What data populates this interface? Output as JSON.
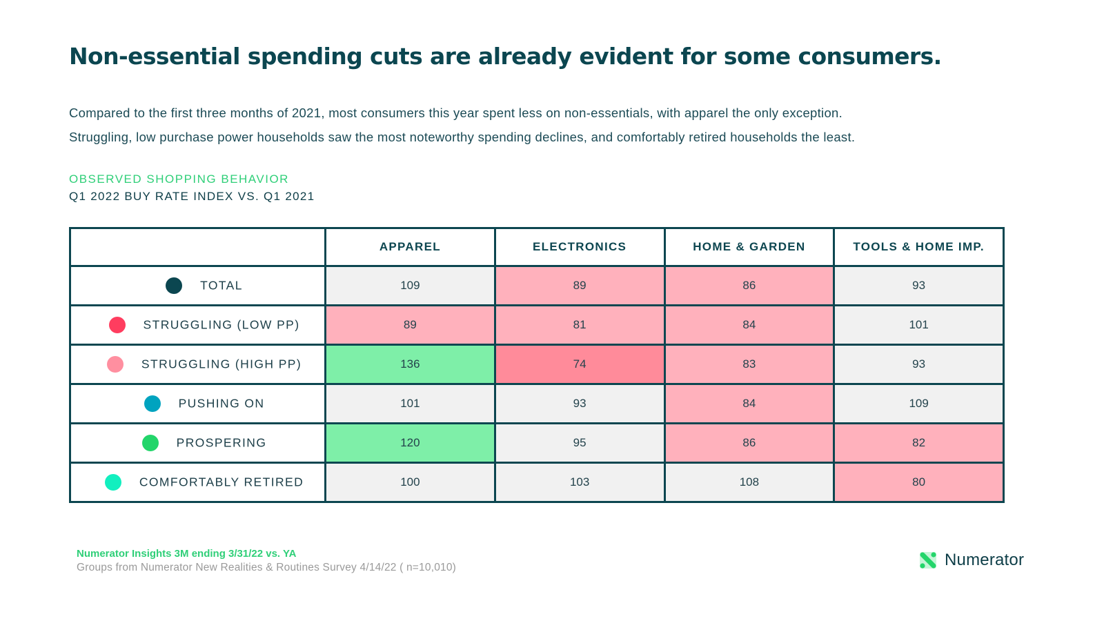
{
  "header": {
    "title": "Non-essential spending cuts are already evident for some consumers.",
    "subtitle_lines": [
      "Compared to the first three months of 2021, most consumers this year spent less on non-essentials, with apparel the only exception.",
      "Struggling, low purchase power households saw the most noteworthy spending declines, and comfortably retired households the least."
    ]
  },
  "section": {
    "label": "OBSERVED SHOPPING BEHAVIOR",
    "sublabel": "Q1 2022 BUY RATE INDEX VS. Q1 2021"
  },
  "colors": {
    "neutral": "#f1f1f1",
    "below_index": "#ffb1bc",
    "well_below_index": "#ff8b9a",
    "above_index": "#7eefa8",
    "border": "#0c4650"
  },
  "table": {
    "columns": [
      "",
      "APPAREL",
      "ELECTRONICS",
      "HOME & GARDEN",
      "TOOLS & HOME IMP."
    ],
    "rows": [
      {
        "label": "TOTAL",
        "dot_color": "#0b4650",
        "values": [
          "109",
          "89",
          "86",
          "93"
        ],
        "styles": [
          "neutral",
          "neg",
          "neg",
          "neutral"
        ]
      },
      {
        "label": "STRUGGLING (LOW PP)",
        "dot_color": "#ff3d5f",
        "values": [
          "89",
          "81",
          "84",
          "101"
        ],
        "styles": [
          "neg",
          "neg",
          "neg",
          "neutral"
        ]
      },
      {
        "label": "STRUGGLING (HIGH PP)",
        "dot_color": "#ff8fa0",
        "values": [
          "136",
          "74",
          "83",
          "93"
        ],
        "styles": [
          "pos",
          "strongneg",
          "neg",
          "neutral"
        ]
      },
      {
        "label": "PUSHING ON",
        "dot_color": "#00a3bf",
        "values": [
          "101",
          "93",
          "84",
          "109"
        ],
        "styles": [
          "neutral",
          "neutral",
          "neg",
          "neutral"
        ]
      },
      {
        "label": "PROSPERING",
        "dot_color": "#23d56a",
        "values": [
          "120",
          "95",
          "86",
          "82"
        ],
        "styles": [
          "pos",
          "neutral",
          "neg",
          "neg"
        ]
      },
      {
        "label": "COMFORTABLY RETIRED",
        "dot_color": "#12efbf",
        "values": [
          "100",
          "103",
          "108",
          "80"
        ],
        "styles": [
          "neutral",
          "neutral",
          "neutral",
          "neg"
        ]
      }
    ]
  },
  "footer": {
    "source": "Numerator Insights 3M ending 3/31/22 vs. YA",
    "note": "Groups from Numerator New Realities & Routines Survey 4/14/22 ( n=10,010)",
    "brand": "Numerator",
    "brand_icon": "numerator-logo-icon"
  }
}
